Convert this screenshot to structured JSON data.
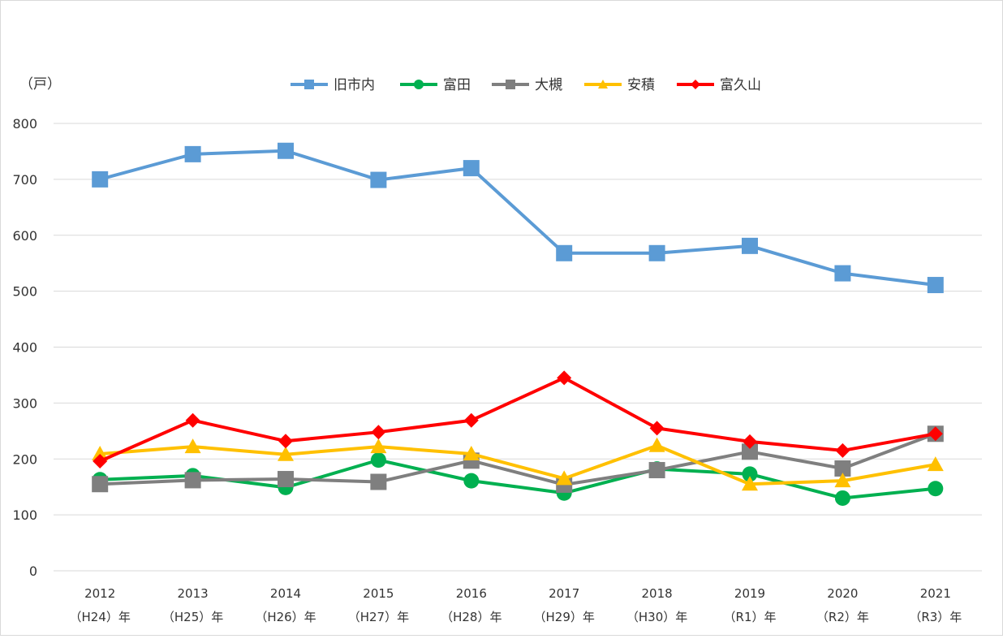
{
  "chart_data": {
    "type": "line",
    "title": "",
    "unit_label": "（戸）",
    "ylim": [
      0,
      800
    ],
    "yticks": [
      0,
      100,
      200,
      300,
      400,
      500,
      600,
      700,
      800
    ],
    "grid": true,
    "legend_position": "top",
    "categories": [
      {
        "year": "2012",
        "era": "（H24）年"
      },
      {
        "year": "2013",
        "era": "（H25）年"
      },
      {
        "year": "2014",
        "era": "（H26）年"
      },
      {
        "year": "2015",
        "era": "（H27）年"
      },
      {
        "year": "2016",
        "era": "（H28）年"
      },
      {
        "year": "2017",
        "era": "（H29）年"
      },
      {
        "year": "2018",
        "era": "（H30）年"
      },
      {
        "year": "2019",
        "era": "（R1）年"
      },
      {
        "year": "2020",
        "era": "（R2）年"
      },
      {
        "year": "2021",
        "era": "（R3）年"
      }
    ],
    "series": [
      {
        "name": "旧市内",
        "color": "#5B9BD5",
        "marker": "square",
        "values": [
          700,
          745,
          751,
          699,
          720,
          568,
          568,
          581,
          532,
          511
        ]
      },
      {
        "name": "富田",
        "color": "#00B050",
        "marker": "circle",
        "values": [
          163,
          170,
          149,
          198,
          161,
          139,
          182,
          173,
          130,
          147
        ]
      },
      {
        "name": "大槻",
        "color": "#7F7F7F",
        "marker": "square",
        "values": [
          155,
          162,
          164,
          159,
          197,
          154,
          180,
          213,
          183,
          245
        ]
      },
      {
        "name": "安積",
        "color": "#FFC000",
        "marker": "triangle",
        "values": [
          209,
          222,
          208,
          222,
          209,
          165,
          224,
          155,
          161,
          190
        ]
      },
      {
        "name": "富久山",
        "color": "#FF0000",
        "marker": "diamond",
        "values": [
          196,
          269,
          232,
          248,
          269,
          345,
          255,
          231,
          215,
          245
        ]
      }
    ]
  }
}
